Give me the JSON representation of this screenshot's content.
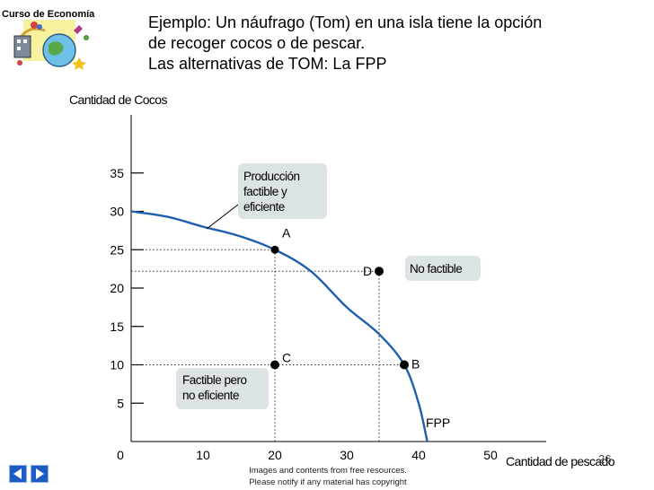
{
  "header": {
    "corner_label": "Curso de Economía",
    "line1": "Ejemplo: Un náufrago (Tom) en una isla tiene la opción",
    "line2": "de recoger cocos o de pescar.",
    "line3": "Las alternativas de TOM: La FPP"
  },
  "chart_data": {
    "type": "line",
    "title": "",
    "xlabel": "Cantidad de pescado",
    "ylabel": "Cantidad de Cocos",
    "xlim": [
      0,
      58
    ],
    "ylim": [
      0,
      40
    ],
    "x_ticks": [
      10,
      20,
      30,
      40,
      50
    ],
    "x_tick_labels": [
      "10",
      "20",
      "30",
      "40",
      "50"
    ],
    "y_ticks": [
      5,
      10,
      15,
      20,
      25,
      30,
      35
    ],
    "y_tick_labels": [
      "5",
      "10",
      "15",
      "20",
      "25",
      "30",
      "35"
    ],
    "origin_label": "0",
    "grid": false,
    "series": [
      {
        "name": "FPP",
        "x": [
          0,
          5,
          10,
          15,
          20,
          25,
          30,
          34.5,
          38,
          40,
          41.2
        ],
        "y": [
          30,
          29.3,
          28,
          26.8,
          25,
          22.2,
          17.5,
          14,
          10,
          5,
          0
        ]
      }
    ],
    "points": [
      {
        "label": "A",
        "x": 20,
        "y": 25,
        "marker": false
      },
      {
        "label": "B",
        "x": 38,
        "y": 10,
        "marker": true
      },
      {
        "label": "C",
        "x": 20,
        "y": 10,
        "marker": true
      },
      {
        "label": "D",
        "x": 34.5,
        "y": 22.2,
        "marker": true
      }
    ],
    "annotations": {
      "efficient": [
        "Producción",
        "factible y",
        "eficiente"
      ],
      "not_feasible": "No factible",
      "inefficient": [
        "Factible pero",
        "no eficiente"
      ],
      "curve_label": "FPP"
    }
  },
  "footer": {
    "note_line1": "Images and contents from free resources.",
    "note_line2": "Please notify if any material has copyright",
    "page_number": "26"
  },
  "colors": {
    "curve": "#1f5fae",
    "box": "#dbe3e5",
    "nav": "#1c5cc4",
    "axis": "#000000"
  },
  "icons": {
    "logo": "globe-clipart-icon",
    "nav_prev": "triangle-left-icon",
    "nav_next": "triangle-right-icon"
  }
}
